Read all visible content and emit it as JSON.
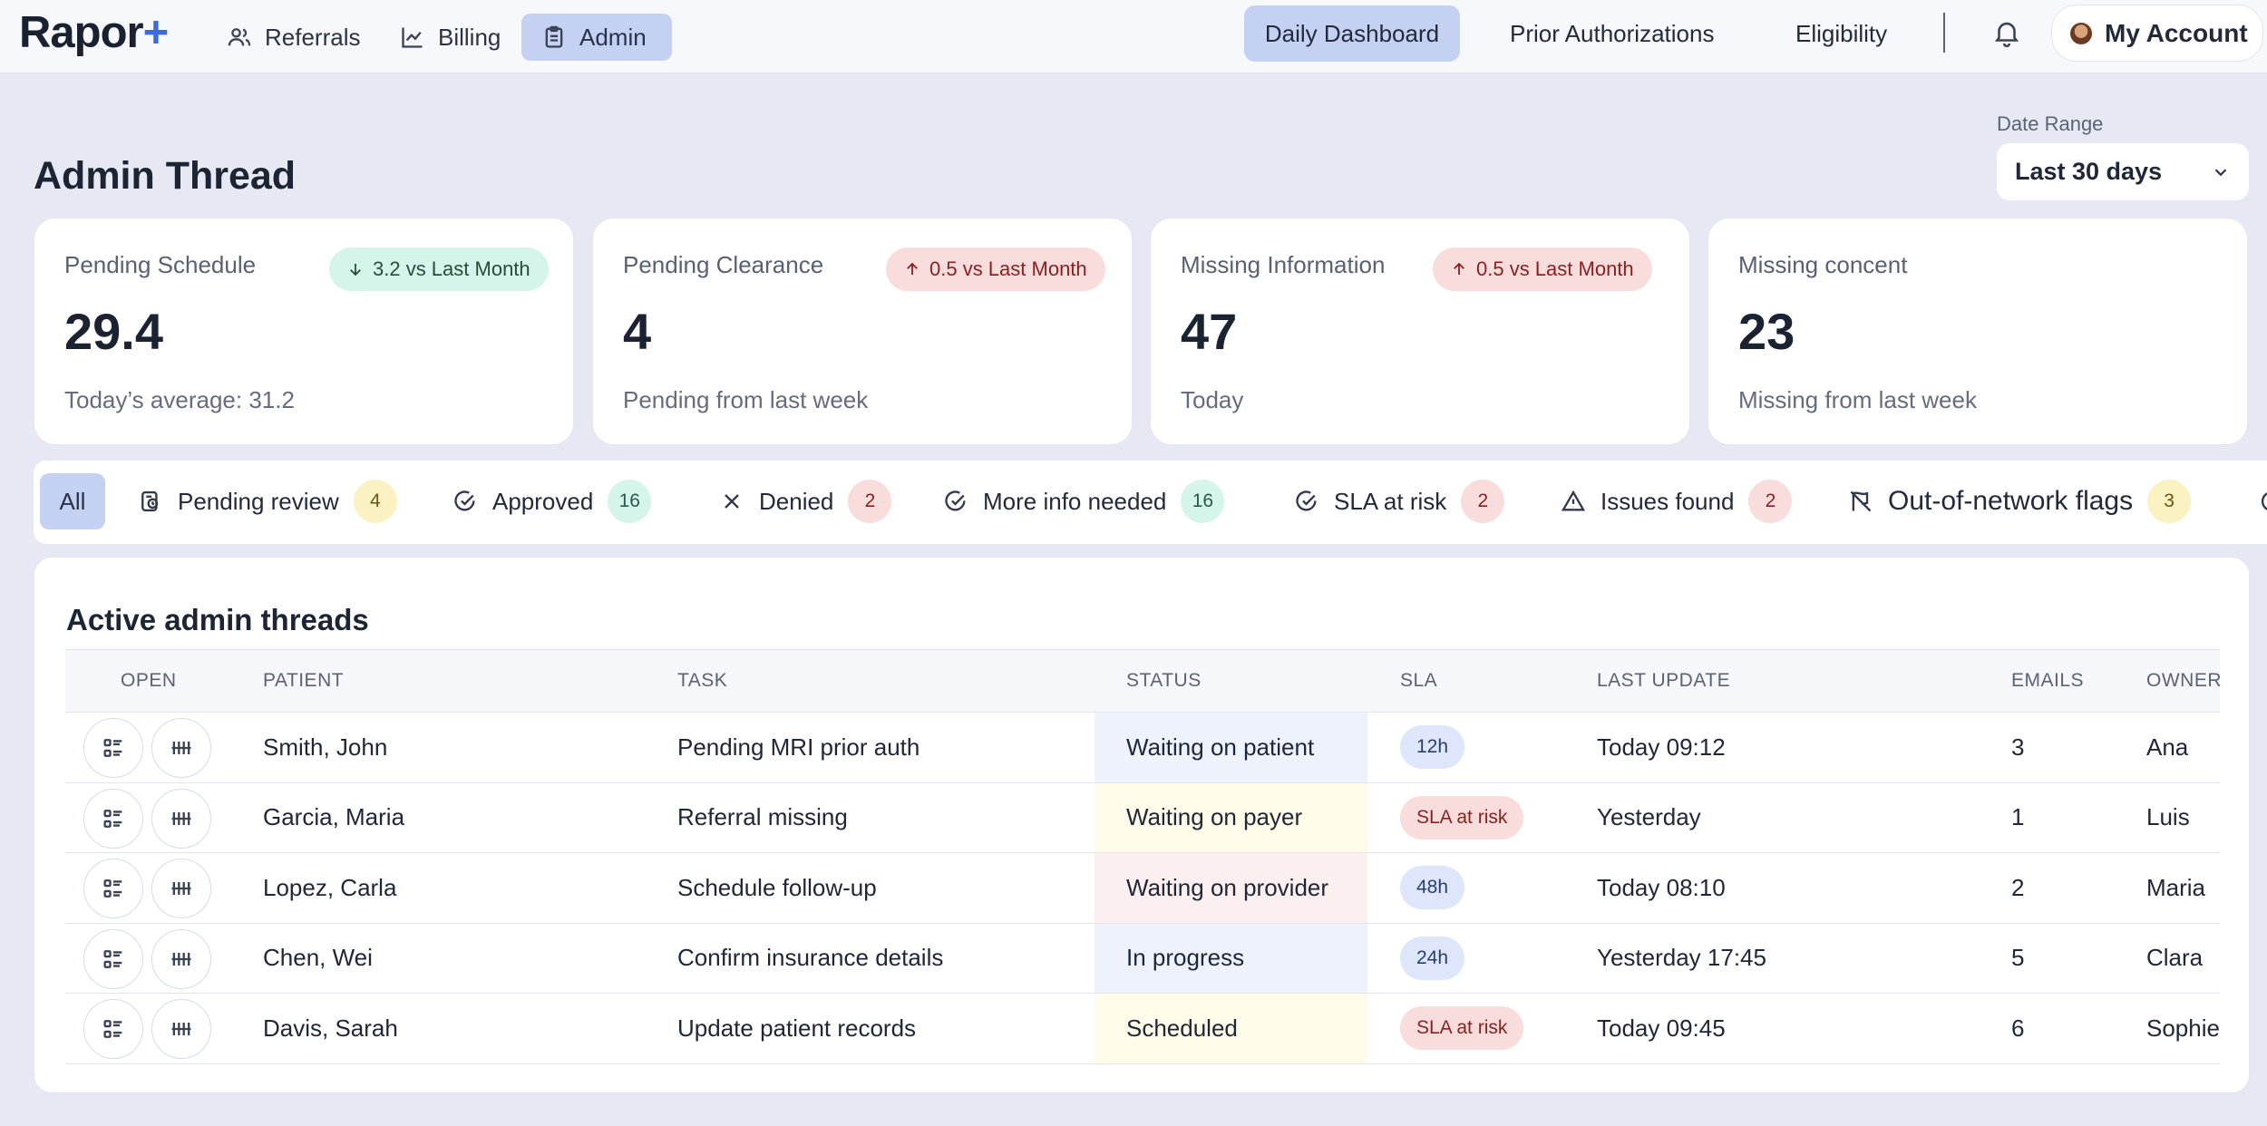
{
  "brand": {
    "name": "Rapor",
    "mark": "+"
  },
  "nav_left": [
    {
      "label": "Referrals",
      "icon": "users-icon"
    },
    {
      "label": "Billing",
      "icon": "chart-line-icon"
    },
    {
      "label": "Admin",
      "icon": "clipboard-icon",
      "active": true
    }
  ],
  "nav_right": [
    {
      "label": "Daily Dashboard",
      "active": true
    },
    {
      "label": "Prior Authorizations"
    },
    {
      "label": "Eligibility"
    }
  ],
  "account": {
    "label": "My Account"
  },
  "page": {
    "title": "Admin Thread"
  },
  "date_range": {
    "label": "Date Range",
    "value": "Last 30 days"
  },
  "kpis": [
    {
      "title": "Pending Schedule",
      "value": "29.4",
      "sub": "Today’s average: 31.2",
      "trend": "3.2 vs Last Month",
      "direction": "down"
    },
    {
      "title": "Pending Clearance",
      "value": "4",
      "sub": "Pending from last week",
      "trend": "0.5 vs Last Month",
      "direction": "up"
    },
    {
      "title": "Missing Information",
      "value": "47",
      "sub": "Today",
      "trend": "0.5 vs Last Month",
      "direction": "up"
    },
    {
      "title": "Missing concent",
      "value": "23",
      "sub": "Missing from last week"
    }
  ],
  "filters": {
    "all": "All",
    "items": [
      {
        "label": "Pending review",
        "count": "4",
        "icon": "pending-review-icon",
        "tone": "yellow"
      },
      {
        "label": "Approved",
        "count": "16",
        "icon": "check-circle-icon",
        "tone": "green"
      },
      {
        "label": "Denied",
        "count": "2",
        "icon": "x-icon",
        "tone": "red"
      },
      {
        "label": "More info needed",
        "count": "16",
        "icon": "check-circle-icon",
        "tone": "green"
      },
      {
        "label": "SLA at risk",
        "count": "2",
        "icon": "check-circle-icon",
        "tone": "red"
      },
      {
        "label": "Issues found",
        "count": "2",
        "icon": "warning-icon",
        "tone": "red"
      },
      {
        "label": "Out-of-network flags",
        "count": "3",
        "icon": "flag-off-icon",
        "tone": "yellow"
      }
    ]
  },
  "threads": {
    "title": "Active admin threads",
    "columns": [
      "OPEN",
      "PATIENT",
      "TASK",
      "STATUS",
      "SLA",
      "LAST UPDATE",
      "EMAILS",
      "OWNER"
    ],
    "rows": [
      {
        "patient": "Smith, John",
        "task": "Pending MRI prior auth",
        "status": "Waiting on patient",
        "status_tone": "blue",
        "sla": "12h",
        "sla_tone": "blue",
        "last_update": "Today 09:12",
        "emails": "3",
        "owner": "Ana"
      },
      {
        "patient": "Garcia, Maria",
        "task": "Referral missing",
        "status": "Waiting on payer",
        "status_tone": "yellow",
        "sla": "SLA at risk",
        "sla_tone": "red",
        "last_update": "Yesterday",
        "emails": "1",
        "owner": "Luis"
      },
      {
        "patient": "Lopez, Carla",
        "task": "Schedule follow-up",
        "status": "Waiting on provider",
        "status_tone": "red",
        "sla": "48h",
        "sla_tone": "blue",
        "last_update": "Today 08:10",
        "emails": "2",
        "owner": "Maria"
      },
      {
        "patient": "Chen, Wei",
        "task": "Confirm insurance details",
        "status": "In progress",
        "status_tone": "blue",
        "sla": "24h",
        "sla_tone": "blue",
        "last_update": "Yesterday 17:45",
        "emails": "5",
        "owner": "Clara"
      },
      {
        "patient": "Davis, Sarah",
        "task": "Update patient records",
        "status": "Scheduled",
        "status_tone": "yellow",
        "sla": "SLA at risk",
        "sla_tone": "red",
        "last_update": "Today 09:45",
        "emails": "6",
        "owner": "Sophie"
      }
    ]
  }
}
